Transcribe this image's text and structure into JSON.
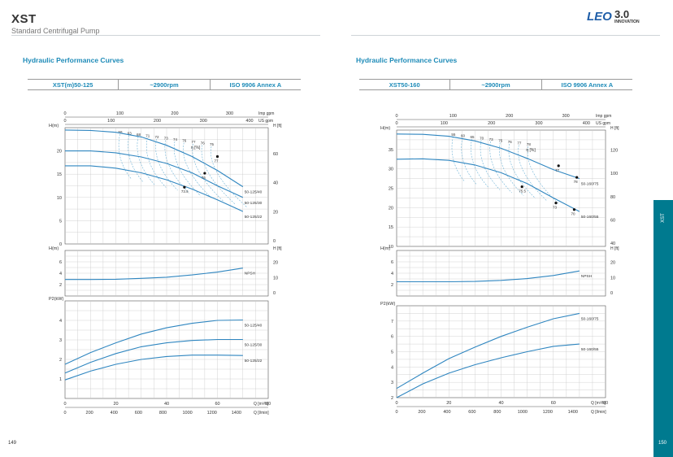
{
  "header": {
    "brand": "XST",
    "subtitle": "Standard Centrifugal Pump",
    "logo_text": "LEO",
    "logo_badge": "3.0",
    "logo_caption": "INNOVATION"
  },
  "sidebar": {
    "label": "XST",
    "color": "#007a8f"
  },
  "colors": {
    "curve": "#2f86c0",
    "grid": "#c8c8c8",
    "dashed": "#6fb3d6",
    "title": "#1e8bb8"
  },
  "pages": {
    "left": "149",
    "right": "150"
  },
  "left": {
    "section_title": "Hydraulic Performance Curves",
    "model": "XST(m)50-125",
    "speed": "~2900rpm",
    "standard": "ISO 9906   Annex A"
  },
  "right": {
    "section_title": "Hydraulic Performance Curves",
    "model": "XST50-160",
    "speed": "~2900rpm",
    "standard": "ISO 9906   Annex A"
  },
  "chart_data": [
    {
      "type": "line",
      "panel": "left-head",
      "ylabel": "H(m)",
      "ylabel_right": "H [ft]",
      "xlabel_top_1": "Imp gpm",
      "xlabel_top_2": "US gpm",
      "xlim": [
        0,
        80
      ],
      "ylim": [
        0,
        25
      ],
      "yticks": [
        0,
        5,
        10,
        15,
        20
      ],
      "yticks_right": [
        "0",
        "20",
        "40",
        "60"
      ],
      "ticks_imp": [
        "0",
        "100",
        "200",
        "300"
      ],
      "ticks_us": [
        "0",
        "100",
        "200",
        "300",
        "400"
      ],
      "eff_label": "η [%]",
      "grid": true,
      "series": [
        {
          "name": "50-125/40",
          "x": [
            0,
            10,
            20,
            30,
            40,
            50,
            60,
            70
          ],
          "y": [
            24.5,
            24.4,
            24.0,
            23.0,
            21.2,
            18.8,
            15.8,
            12.3
          ]
        },
        {
          "name": "50-125/30",
          "x": [
            0,
            10,
            20,
            30,
            40,
            50,
            60,
            70
          ],
          "y": [
            20.0,
            20.0,
            19.6,
            18.7,
            17.3,
            15.3,
            12.5,
            10.0
          ]
        },
        {
          "name": "50-125/22",
          "x": [
            0,
            10,
            20,
            30,
            40,
            50,
            60,
            70
          ],
          "y": [
            16.8,
            16.8,
            16.3,
            15.3,
            13.8,
            11.8,
            9.5,
            7.0
          ]
        }
      ],
      "eff_values": [
        "58",
        "63",
        "68",
        "71",
        "72",
        "73",
        "74",
        "76",
        "77",
        "76",
        "75"
      ],
      "points": [
        {
          "label": "77",
          "x": 60,
          "y": 18.8
        },
        {
          "label": "76",
          "x": 55,
          "y": 15.2
        },
        {
          "label": "73.5",
          "x": 47,
          "y": 12.2
        }
      ]
    },
    {
      "type": "line",
      "panel": "left-npsh",
      "ylabel": "H(m)",
      "ylabel_right": "H [ft]",
      "xlim": [
        0,
        80
      ],
      "ylim": [
        0,
        8
      ],
      "yticks": [
        2,
        4,
        6
      ],
      "yticks_right": [
        "0",
        "10",
        "20"
      ],
      "series": [
        {
          "name": "NPSH",
          "x": [
            0,
            10,
            20,
            30,
            40,
            50,
            60,
            70
          ],
          "y": [
            2.9,
            2.9,
            2.95,
            3.1,
            3.3,
            3.7,
            4.2,
            4.9
          ]
        }
      ]
    },
    {
      "type": "line",
      "panel": "left-power",
      "ylabel": "P2(kW)",
      "xlabel": "Q [m³/h]",
      "xlabel2": "Q [l/min]",
      "xlim": [
        0,
        80
      ],
      "ylim": [
        0,
        5
      ],
      "yticks": [
        1,
        2,
        3,
        4
      ],
      "xticks": [
        "0",
        "20",
        "40",
        "60",
        "80"
      ],
      "xticks2": [
        "0",
        "200",
        "400",
        "600",
        "800",
        "1000",
        "1200",
        "1400"
      ],
      "series": [
        {
          "name": "50-125/40",
          "x": [
            0,
            10,
            20,
            30,
            40,
            50,
            60,
            70
          ],
          "y": [
            1.75,
            2.35,
            2.85,
            3.3,
            3.62,
            3.85,
            4.0,
            4.02
          ]
        },
        {
          "name": "50-125/30",
          "x": [
            0,
            10,
            20,
            30,
            40,
            50,
            60,
            70
          ],
          "y": [
            1.3,
            1.85,
            2.3,
            2.65,
            2.85,
            2.97,
            3.02,
            3.02
          ]
        },
        {
          "name": "50-125/22",
          "x": [
            0,
            10,
            20,
            30,
            40,
            50,
            60,
            70
          ],
          "y": [
            0.95,
            1.4,
            1.75,
            2.0,
            2.15,
            2.22,
            2.22,
            2.2
          ]
        }
      ]
    },
    {
      "type": "line",
      "panel": "right-head",
      "ylabel": "H(m)",
      "ylabel_right": "H [ft]",
      "xlabel_top_1": "Imp gpm",
      "xlabel_top_2": "US gpm",
      "xlim": [
        0,
        80
      ],
      "ylim": [
        10,
        40
      ],
      "yticks": [
        10,
        15,
        20,
        25,
        30,
        35
      ],
      "yticks_right": [
        "40",
        "60",
        "80",
        "100",
        "120"
      ],
      "ticks_imp": [
        "0",
        "100",
        "200",
        "300"
      ],
      "ticks_us": [
        "0",
        "100",
        "200",
        "300",
        "400"
      ],
      "eff_label": "η [%]",
      "grid": true,
      "series": [
        {
          "name": "50-160/75",
          "x": [
            0,
            10,
            20,
            30,
            40,
            50,
            60,
            70
          ],
          "y": [
            39.0,
            38.9,
            38.4,
            37.2,
            35.3,
            32.7,
            29.8,
            27.5
          ]
        },
        {
          "name": "50-160/55",
          "x": [
            0,
            10,
            20,
            30,
            40,
            50,
            60,
            70
          ],
          "y": [
            32.5,
            32.6,
            32.2,
            31.0,
            29.0,
            26.2,
            22.5,
            19.0
          ]
        }
      ],
      "eff_values": [
        "55",
        "60",
        "65",
        "70",
        "73",
        "75",
        "76",
        "77",
        "78"
      ],
      "points": [
        {
          "label": "77",
          "x": 62,
          "y": 30.8
        },
        {
          "label": "78",
          "x": 69,
          "y": 27.8
        },
        {
          "label": "75.5",
          "x": 48,
          "y": 25.4
        },
        {
          "label": "73",
          "x": 61,
          "y": 21.2
        },
        {
          "label": "70",
          "x": 68,
          "y": 19.5
        }
      ]
    },
    {
      "type": "line",
      "panel": "right-npsh",
      "ylabel": "H(m)",
      "ylabel_right": "H [ft]",
      "xlim": [
        0,
        80
      ],
      "ylim": [
        0,
        8
      ],
      "yticks": [
        2,
        4,
        6
      ],
      "yticks_right": [
        "0",
        "10",
        "20"
      ],
      "series": [
        {
          "name": "NPSH",
          "x": [
            0,
            10,
            20,
            30,
            40,
            50,
            60,
            70
          ],
          "y": [
            2.5,
            2.5,
            2.5,
            2.55,
            2.75,
            3.05,
            3.6,
            4.4
          ]
        }
      ]
    },
    {
      "type": "line",
      "panel": "right-power",
      "ylabel": "P2(kW)",
      "xlabel": "Q [m³/h]",
      "xlabel2": "Q [l/min]",
      "xlim": [
        0,
        80
      ],
      "ylim": [
        2,
        8
      ],
      "yticks": [
        2,
        3,
        4,
        5,
        6,
        7
      ],
      "xticks": [
        "0",
        "20",
        "40",
        "60",
        "80"
      ],
      "xticks2": [
        "0",
        "200",
        "400",
        "600",
        "800",
        "1000",
        "1200",
        "1400"
      ],
      "series": [
        {
          "name": "50-160/75",
          "x": [
            0,
            10,
            20,
            30,
            40,
            50,
            60,
            70
          ],
          "y": [
            2.6,
            3.6,
            4.55,
            5.3,
            6.0,
            6.6,
            7.15,
            7.5
          ]
        },
        {
          "name": "50-160/55",
          "x": [
            0,
            10,
            20,
            30,
            40,
            50,
            60,
            70
          ],
          "y": [
            2.0,
            2.9,
            3.6,
            4.15,
            4.6,
            5.0,
            5.35,
            5.5
          ]
        }
      ]
    }
  ]
}
